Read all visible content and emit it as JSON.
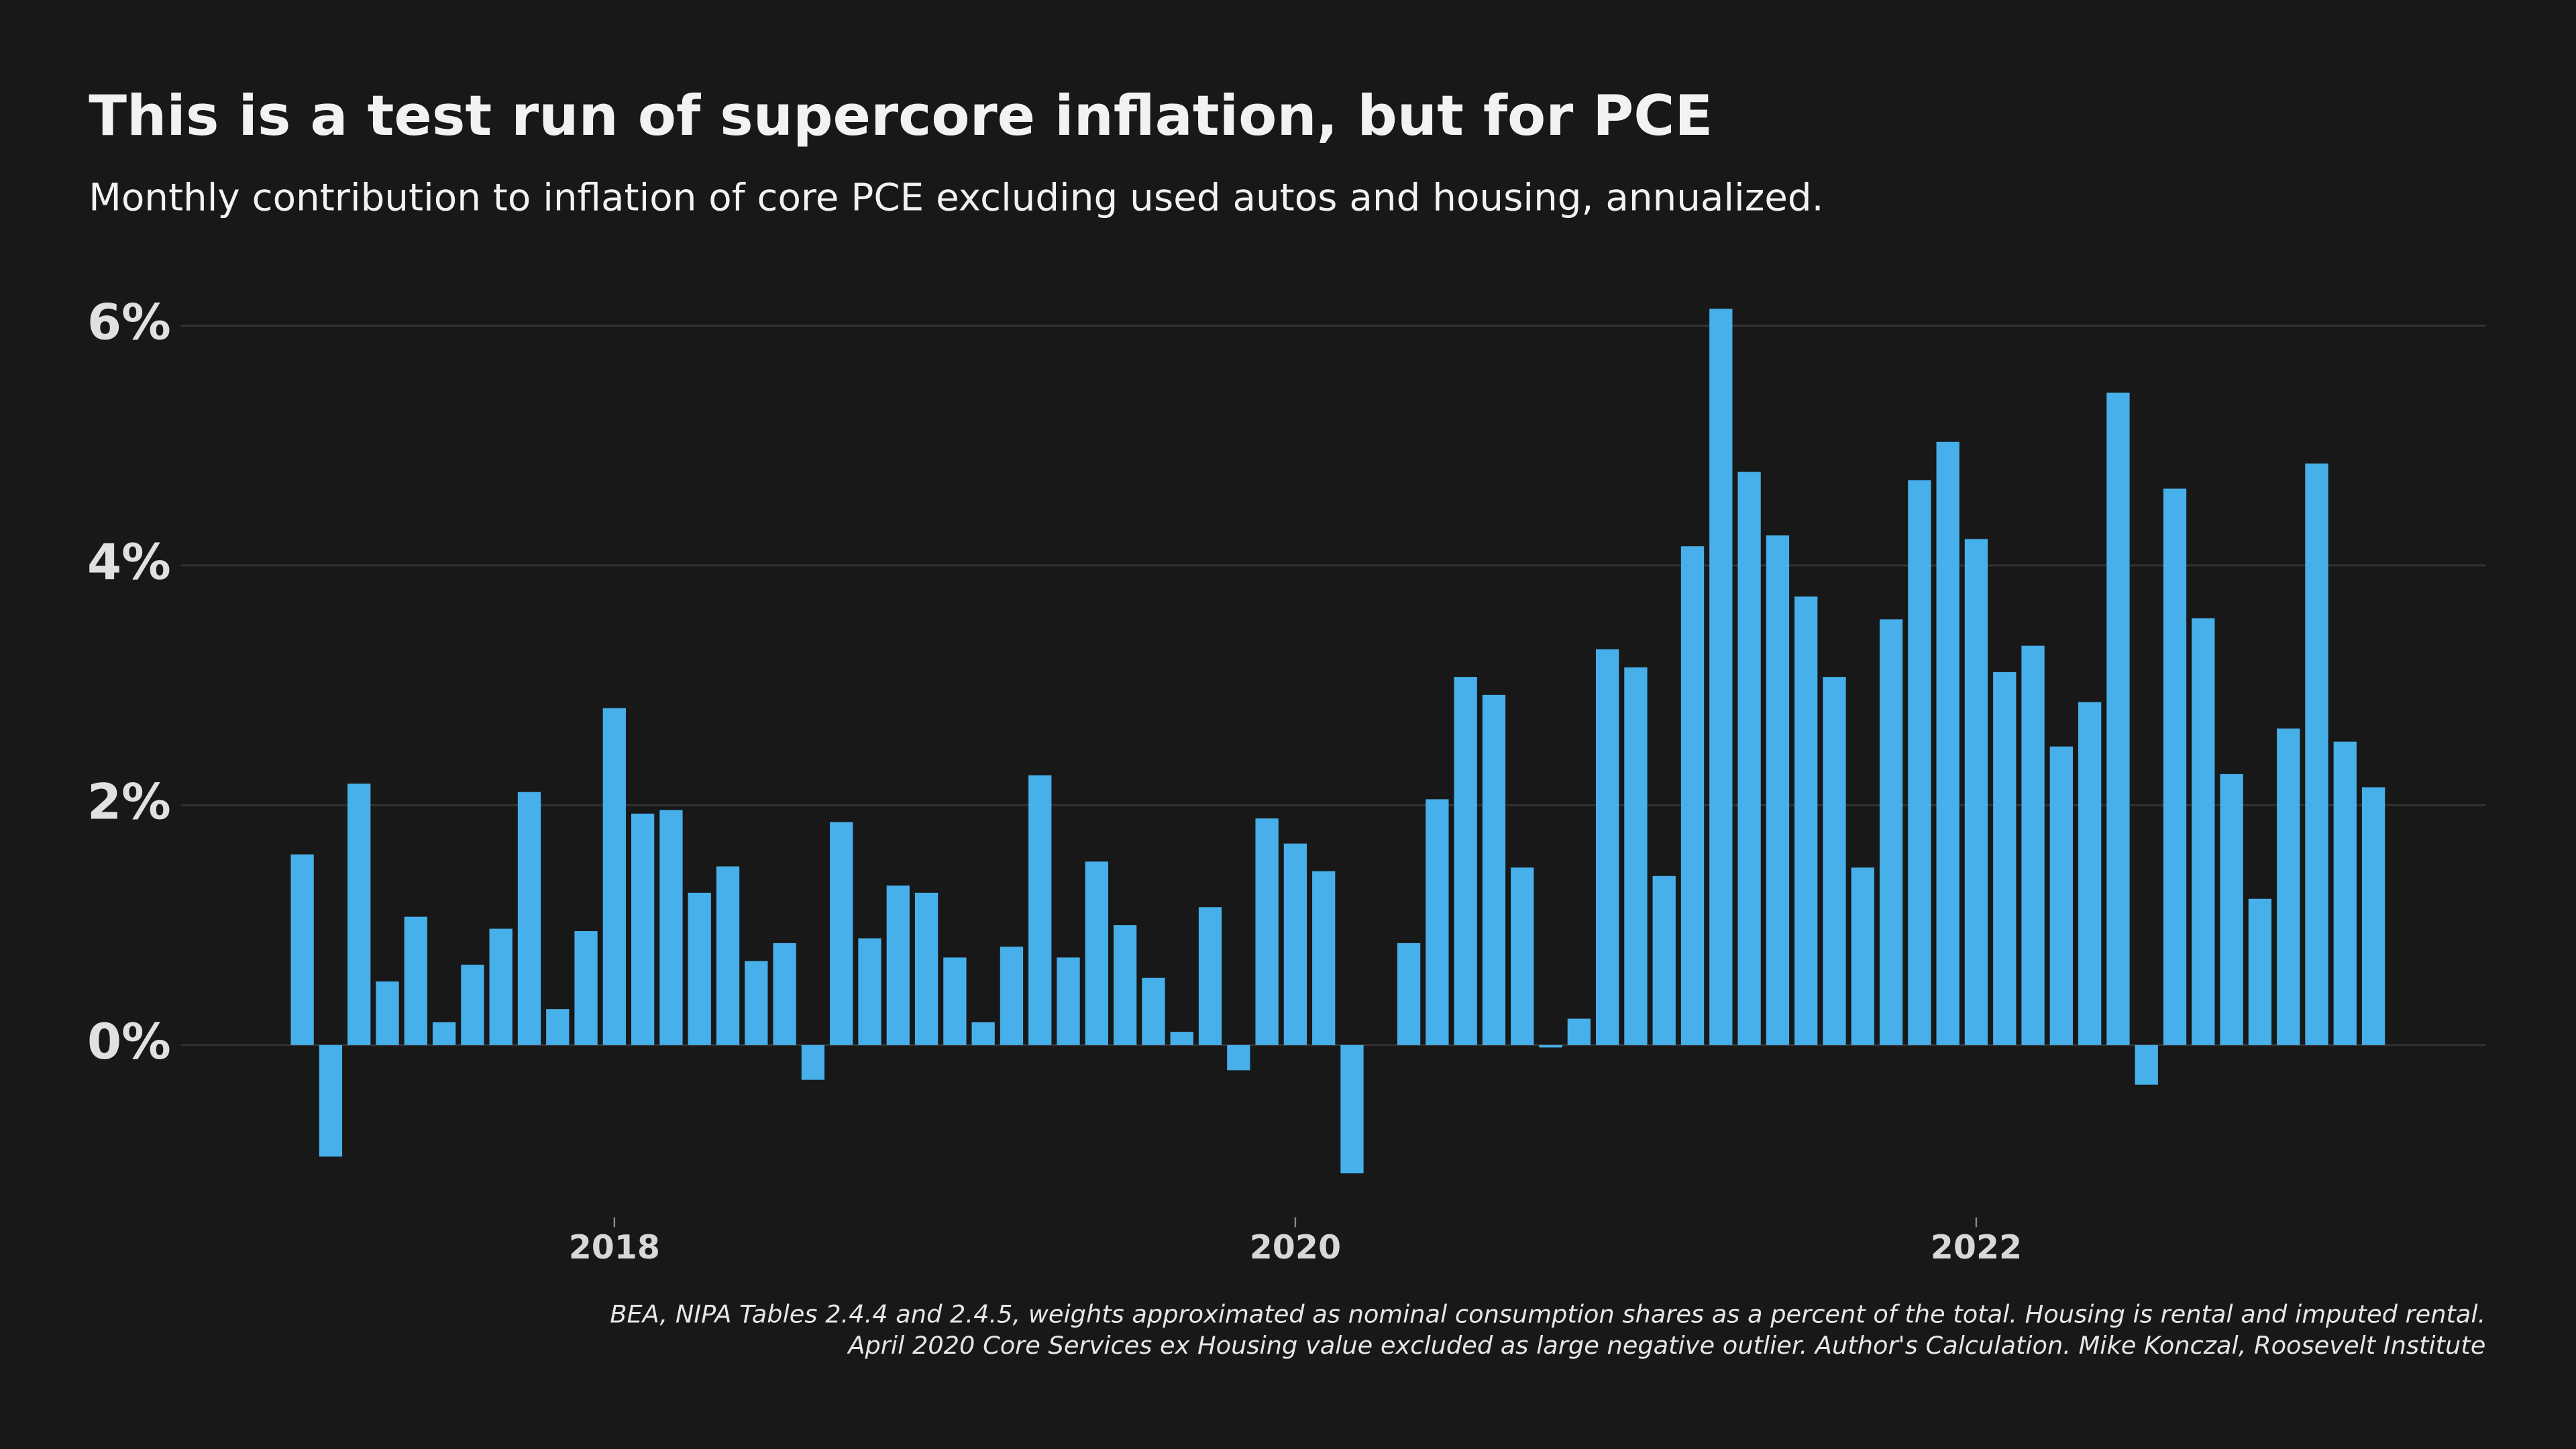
{
  "chart_data": {
    "type": "bar",
    "title": "This is a test run of supercore inflation, but for PCE",
    "subtitle": "Monthly contribution to inflation of core PCE excluding used autos and housing, annualized.",
    "source": [
      "BEA, NIPA Tables 2.4.4 and 2.4.5, weights approximated as nominal consumption shares as a percent of the total. Housing is rental and imputed rental.",
      "April 2020 Core Services ex Housing value excluded as large negative outlier. Author's Calculation. Mike Konczal, Roosevelt Institute"
    ],
    "categories": [
      null,
      null,
      null,
      null,
      null,
      null,
      null,
      null,
      null,
      null,
      null,
      "2018",
      null,
      null,
      null,
      null,
      null,
      null,
      null,
      null,
      null,
      null,
      null,
      null,
      null,
      null,
      null,
      null,
      null,
      null,
      null,
      null,
      null,
      null,
      null,
      "2020",
      null,
      null,
      null,
      null,
      null,
      null,
      null,
      null,
      null,
      null,
      null,
      null,
      null,
      null,
      null,
      null,
      null,
      null,
      null,
      null,
      null,
      null,
      null,
      "2022",
      null,
      null,
      null,
      null,
      null,
      null,
      null,
      null,
      null,
      null,
      null,
      null,
      null,
      null
    ],
    "values": [
      1.59,
      -0.93,
      2.18,
      0.53,
      1.07,
      0.19,
      0.67,
      0.97,
      2.11,
      0.3,
      0.95,
      2.81,
      1.93,
      1.96,
      1.27,
      1.49,
      0.7,
      0.85,
      -0.29,
      1.86,
      0.89,
      1.33,
      1.27,
      0.73,
      0.19,
      0.82,
      2.25,
      0.73,
      1.53,
      1.0,
      0.56,
      0.11,
      1.15,
      -0.21,
      1.89,
      1.68,
      1.45,
      -1.07,
      null,
      0.85,
      2.05,
      3.07,
      2.92,
      1.48,
      -0.02,
      0.22,
      3.3,
      3.15,
      1.41,
      4.16,
      6.14,
      4.78,
      4.25,
      3.74,
      3.07,
      1.48,
      3.55,
      4.71,
      5.03,
      4.22,
      3.11,
      3.33,
      2.49,
      2.86,
      5.44,
      -0.33,
      4.64,
      3.56,
      2.26,
      1.22,
      2.64,
      4.85,
      2.53,
      2.15
    ],
    "color": "#47b0ea",
    "ylim": [
      -1.3,
      6.4
    ],
    "yticks": [
      {
        "value": 0,
        "label": "0%"
      },
      {
        "value": 2,
        "label": "2%"
      },
      {
        "value": 4,
        "label": "4%"
      },
      {
        "value": 6,
        "label": "6%"
      }
    ],
    "grid": true
  }
}
